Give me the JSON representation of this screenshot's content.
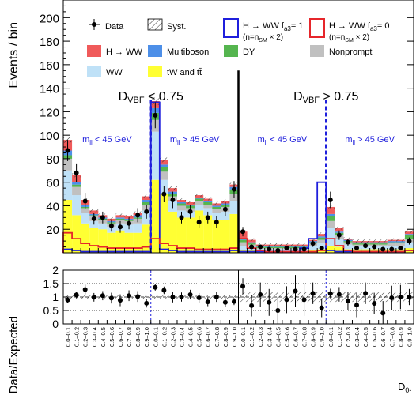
{
  "chart_data": [
    {
      "type": "bar",
      "subtype": "stacked-histogram",
      "ylabel": "Events / bin",
      "ylim": [
        0,
        215
      ],
      "yticks": [
        20,
        40,
        60,
        80,
        100,
        120,
        140,
        160,
        180,
        200
      ],
      "categories": [
        "0.0–0.1",
        "0.1–0.2",
        "0.2–0.3",
        "0.3–0.4",
        "0.4–0.5",
        "0.5–0.6",
        "0.6–0.7",
        "0.7–0.8",
        "0.8–0.9",
        "0.9–1.0",
        "0.0–0.1",
        "0.1–0.2",
        "0.2–0.3",
        "0.3–0.4",
        "0.4–0.5",
        "0.5–0.6",
        "0.6–0.7",
        "0.7–0.8",
        "0.8–0.9",
        "0.9–1.0",
        "0.0–0.1",
        "0.1–0.2",
        "0.2–0.3",
        "0.3–0.4",
        "0.4–0.5",
        "0.5–0.6",
        "0.6–0.7",
        "0.7–0.8",
        "0.8–0.9",
        "0.9–1.0",
        "0.0–0.1",
        "0.1–0.2",
        "0.2–0.3",
        "0.3–0.4",
        "0.4–0.5",
        "0.5–0.6",
        "0.6–0.7",
        "0.7–0.8",
        "0.8–0.9",
        "0.9–1.0"
      ],
      "regions": [
        {
          "text": "D",
          "sub": "VBF",
          "tail": " < 0.75",
          "span": [
            0,
            20
          ]
        },
        {
          "text": "D",
          "sub": "VBF",
          "tail": " > 0.75",
          "span": [
            20,
            40
          ]
        }
      ],
      "subregions": [
        {
          "text": "m",
          "sub": "ll",
          "tail": " < 45 GeV",
          "span": [
            0,
            10
          ]
        },
        {
          "text": "m",
          "sub": "ll",
          "tail": " > 45 GeV",
          "span": [
            10,
            20
          ]
        },
        {
          "text": "m",
          "sub": "ll",
          "tail": " < 45 GeV",
          "span": [
            20,
            30
          ]
        },
        {
          "text": "m",
          "sub": "ll",
          "tail": " > 45 GeV",
          "span": [
            30,
            40
          ]
        }
      ],
      "stack": [
        {
          "key": "tw",
          "name": "tW and tt̄",
          "color": "#ffff33",
          "values": [
            45,
            32,
            25,
            21,
            20,
            17,
            19,
            17,
            17,
            24,
            62,
            50,
            35,
            30,
            30,
            36,
            32,
            28,
            28,
            33,
            2,
            2,
            1,
            1,
            1,
            1,
            1,
            1,
            2,
            3,
            6,
            5,
            3,
            3,
            3,
            3,
            3,
            3,
            3,
            4
          ]
        },
        {
          "key": "ww",
          "name": "WW",
          "color": "#bfe1f7",
          "values": [
            25,
            17,
            9,
            6,
            5,
            5,
            6,
            7,
            8,
            12,
            41,
            12,
            9,
            6,
            5,
            5,
            6,
            6,
            7,
            11,
            4,
            3,
            2,
            2,
            2,
            2,
            2,
            2,
            4,
            5,
            15,
            7,
            4,
            3,
            3,
            3,
            3,
            3,
            3,
            5
          ]
        },
        {
          "key": "nonprompt",
          "name": "Nonprompt",
          "color": "#c0c0c0",
          "values": [
            10,
            7,
            4,
            4,
            3,
            3,
            3,
            3,
            4,
            5,
            10,
            7,
            4,
            4,
            3,
            3,
            3,
            3,
            4,
            6,
            3,
            2,
            1,
            1,
            1,
            1,
            1,
            1,
            2,
            3,
            6,
            3,
            2,
            1,
            1,
            1,
            1,
            2,
            2,
            3
          ]
        },
        {
          "key": "dy",
          "name": "DY",
          "color": "#55b54f",
          "values": [
            3,
            2,
            1,
            1,
            1,
            1,
            1,
            1,
            1,
            2,
            6,
            4,
            2,
            2,
            2,
            2,
            2,
            2,
            2,
            4,
            2,
            1,
            1,
            1,
            1,
            1,
            1,
            1,
            1,
            2,
            4,
            2,
            1,
            1,
            1,
            1,
            1,
            1,
            1,
            3
          ]
        },
        {
          "key": "multiboson",
          "name": "Multiboson",
          "color": "#4d8fe8",
          "values": [
            4,
            2,
            2,
            1,
            1,
            1,
            1,
            1,
            2,
            2,
            4,
            2,
            2,
            1,
            1,
            1,
            1,
            1,
            1,
            2,
            1,
            1,
            1,
            1,
            1,
            1,
            1,
            1,
            1,
            1,
            2,
            1,
            1,
            1,
            1,
            1,
            1,
            1,
            1,
            1
          ]
        },
        {
          "key": "hww",
          "name": "H → WW",
          "color": "#f05a5a",
          "values": [
            9,
            6,
            4,
            3,
            2,
            2,
            2,
            2,
            2,
            3,
            6,
            4,
            3,
            2,
            2,
            2,
            2,
            2,
            2,
            2,
            6,
            2,
            1,
            1,
            1,
            1,
            1,
            1,
            1,
            2,
            6,
            3,
            1,
            1,
            1,
            1,
            1,
            1,
            1,
            2
          ]
        }
      ],
      "overlays": [
        {
          "key": "fa3",
          "name": "H → WW f",
          "name_sub": "a3",
          "name_tail": "= 1",
          "note": "(n=n",
          "note_sub": "SM",
          "note_tail": " × 2)",
          "color": "#1f1fdc",
          "values": [
            3,
            2,
            1,
            1,
            1,
            1,
            1,
            1,
            1,
            1,
            128,
            3,
            2,
            1,
            1,
            1,
            1,
            1,
            1,
            2,
            1,
            1,
            1,
            1,
            1,
            1,
            1,
            4,
            12,
            60,
            2,
            1,
            1,
            1,
            1,
            1,
            1,
            1,
            1,
            2
          ]
        },
        {
          "key": "sm",
          "name": "H → WW f",
          "name_sub": "a3",
          "name_tail": "= 0",
          "note": "(n=n",
          "note_sub": "SM",
          "note_tail": " × 2)",
          "color": "#e6262b",
          "values": [
            17,
            12,
            8,
            6,
            5,
            4,
            4,
            4,
            4,
            5,
            12,
            8,
            6,
            4,
            4,
            3,
            3,
            3,
            3,
            4,
            12,
            4,
            2,
            1,
            1,
            1,
            1,
            1,
            1,
            2,
            12,
            6,
            2,
            1,
            1,
            1,
            1,
            1,
            1,
            2
          ]
        }
      ],
      "data": {
        "name": "Data",
        "values": [
          87,
          68,
          44,
          29,
          30,
          23,
          22,
          25,
          32,
          35,
          117,
          50,
          45,
          30,
          35,
          26,
          30,
          26,
          37,
          54,
          18,
          5,
          5,
          3,
          2,
          4,
          3,
          3,
          8,
          4,
          45,
          15,
          9,
          4,
          6,
          5,
          3,
          3,
          4,
          10
        ],
        "errors": [
          9,
          8,
          7,
          5,
          5,
          5,
          5,
          5,
          6,
          6,
          11,
          7,
          7,
          5,
          6,
          5,
          5,
          5,
          6,
          7,
          4,
          2,
          2,
          2,
          1,
          2,
          2,
          2,
          3,
          2,
          7,
          4,
          3,
          2,
          2,
          2,
          2,
          2,
          2,
          3
        ]
      },
      "syst_label": "Syst."
    },
    {
      "type": "scatter",
      "ylabel": "Data/Expected",
      "ylim": [
        0,
        2
      ],
      "yticks": [
        0,
        0.5,
        1,
        1.5,
        2
      ],
      "x_axis_label": "D",
      "x_axis_sub": "0-",
      "ratio": [
        0.89,
        1.08,
        1.28,
        0.99,
        1.05,
        0.96,
        0.88,
        1.05,
        1.02,
        0.77,
        1.36,
        1.25,
        1.0,
        1.0,
        1.09,
        0.97,
        0.82,
        1.0,
        0.8,
        0.83,
        1.4,
        0.68,
        1.09,
        0.8,
        0.5,
        0.9,
        1.22,
        0.9,
        1.14,
        0.6,
        1.13,
        1.1,
        0.86,
        0.7,
        1.14,
        0.76,
        0.4,
        0.97,
        1.0,
        1.0
      ],
      "ratio_errors": [
        0.1,
        0.12,
        0.18,
        0.16,
        0.17,
        0.2,
        0.22,
        0.2,
        0.2,
        0.16,
        0.12,
        0.14,
        0.2,
        0.17,
        0.18,
        0.18,
        0.16,
        0.18,
        0.16,
        0.13,
        0.3,
        0.4,
        0.45,
        0.5,
        0.5,
        0.5,
        0.6,
        0.6,
        0.4,
        0.35,
        0.18,
        0.27,
        0.33,
        0.45,
        0.4,
        0.4,
        0.45,
        0.45,
        0.45,
        0.3
      ]
    }
  ]
}
